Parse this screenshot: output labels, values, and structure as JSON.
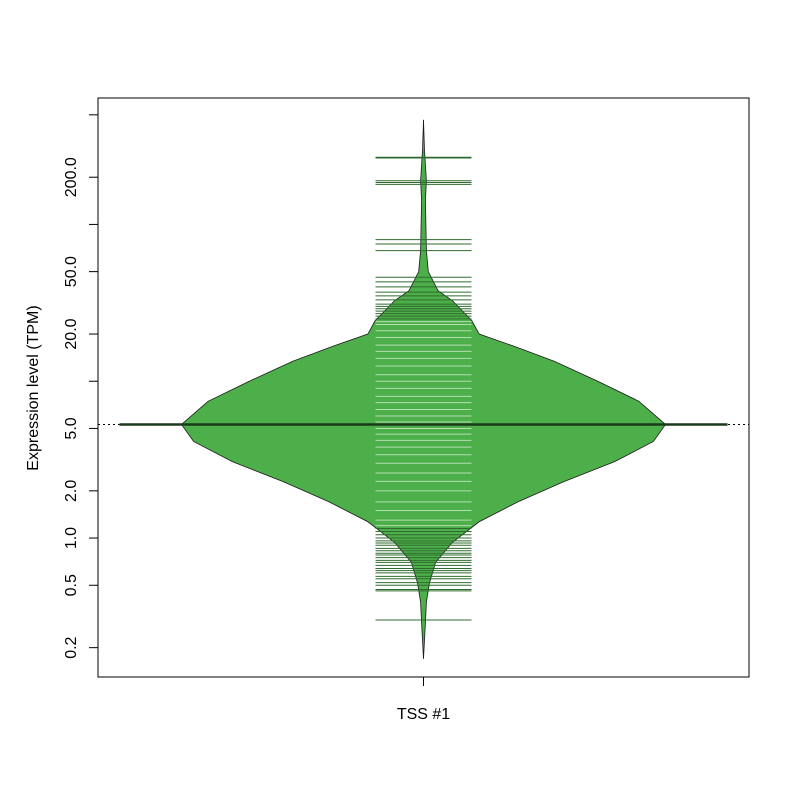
{
  "chart_data": {
    "type": "beanplot",
    "ylabel": "Expression level (TPM)",
    "categories": [
      "TSS #1"
    ],
    "ylog": true,
    "ylim": [
      0.13,
      640
    ],
    "yticks": [
      0.2,
      0.5,
      {
        "value": 1,
        "label": "1.0"
      },
      {
        "value": 2,
        "label": "2.0"
      },
      {
        "value": 5,
        "label": "5.0"
      },
      {
        "value": 20,
        "label": "20.0"
      },
      {
        "value": 50,
        "label": "50.0"
      },
      {
        "value": 200,
        "label": "200.0"
      }
    ],
    "minor_yticks": [
      10,
      100,
      500
    ],
    "colors": {
      "fill": "#4daf4a",
      "border": "#1a1a1a",
      "line_light": "#b3deb0",
      "line_dark": "#2f6b2f",
      "mean": "#1a3a1a"
    },
    "beans": [
      {
        "mean": 5.3,
        "density": {
          "y": [
            464,
            300,
            190,
            143,
            68,
            50,
            37.8,
            32.6,
            24.3,
            20,
            16.8,
            13.4,
            10,
            7.45,
            5.3,
            4.13,
            3.07,
            2.29,
            1.7,
            1.27,
            0.94,
            0.7,
            0.52,
            0.39,
            0.29,
            0.17
          ],
          "width": [
            0,
            0.004,
            0.012,
            0.008,
            0.012,
            0.02,
            0.06,
            0.12,
            0.2,
            0.23,
            0.37,
            0.54,
            0.72,
            0.89,
            1,
            0.95,
            0.79,
            0.58,
            0.39,
            0.23,
            0.12,
            0.05,
            0.025,
            0.012,
            0.008,
            0
          ]
        },
        "observations": [
          0.3,
          0.46,
          0.47,
          0.5,
          0.52,
          0.55,
          0.57,
          0.6,
          0.62,
          0.64,
          0.67,
          0.7,
          0.72,
          0.75,
          0.78,
          0.8,
          0.83,
          0.86,
          0.9,
          0.93,
          0.96,
          1.0,
          1.05,
          1.1,
          1.15,
          1.2,
          1.3,
          1.5,
          1.7,
          2,
          2.3,
          2.6,
          3,
          3.4,
          3.8,
          4.2,
          4.6,
          5,
          5.5,
          6,
          6.6,
          7.3,
          8,
          9,
          10,
          11,
          12.5,
          14,
          15.5,
          17,
          19,
          21,
          23,
          24,
          25,
          26,
          27,
          28,
          29,
          30,
          31,
          33,
          35,
          37,
          40,
          43,
          46,
          68,
          75,
          80,
          180,
          185,
          190,
          265,
          268
        ]
      }
    ]
  }
}
